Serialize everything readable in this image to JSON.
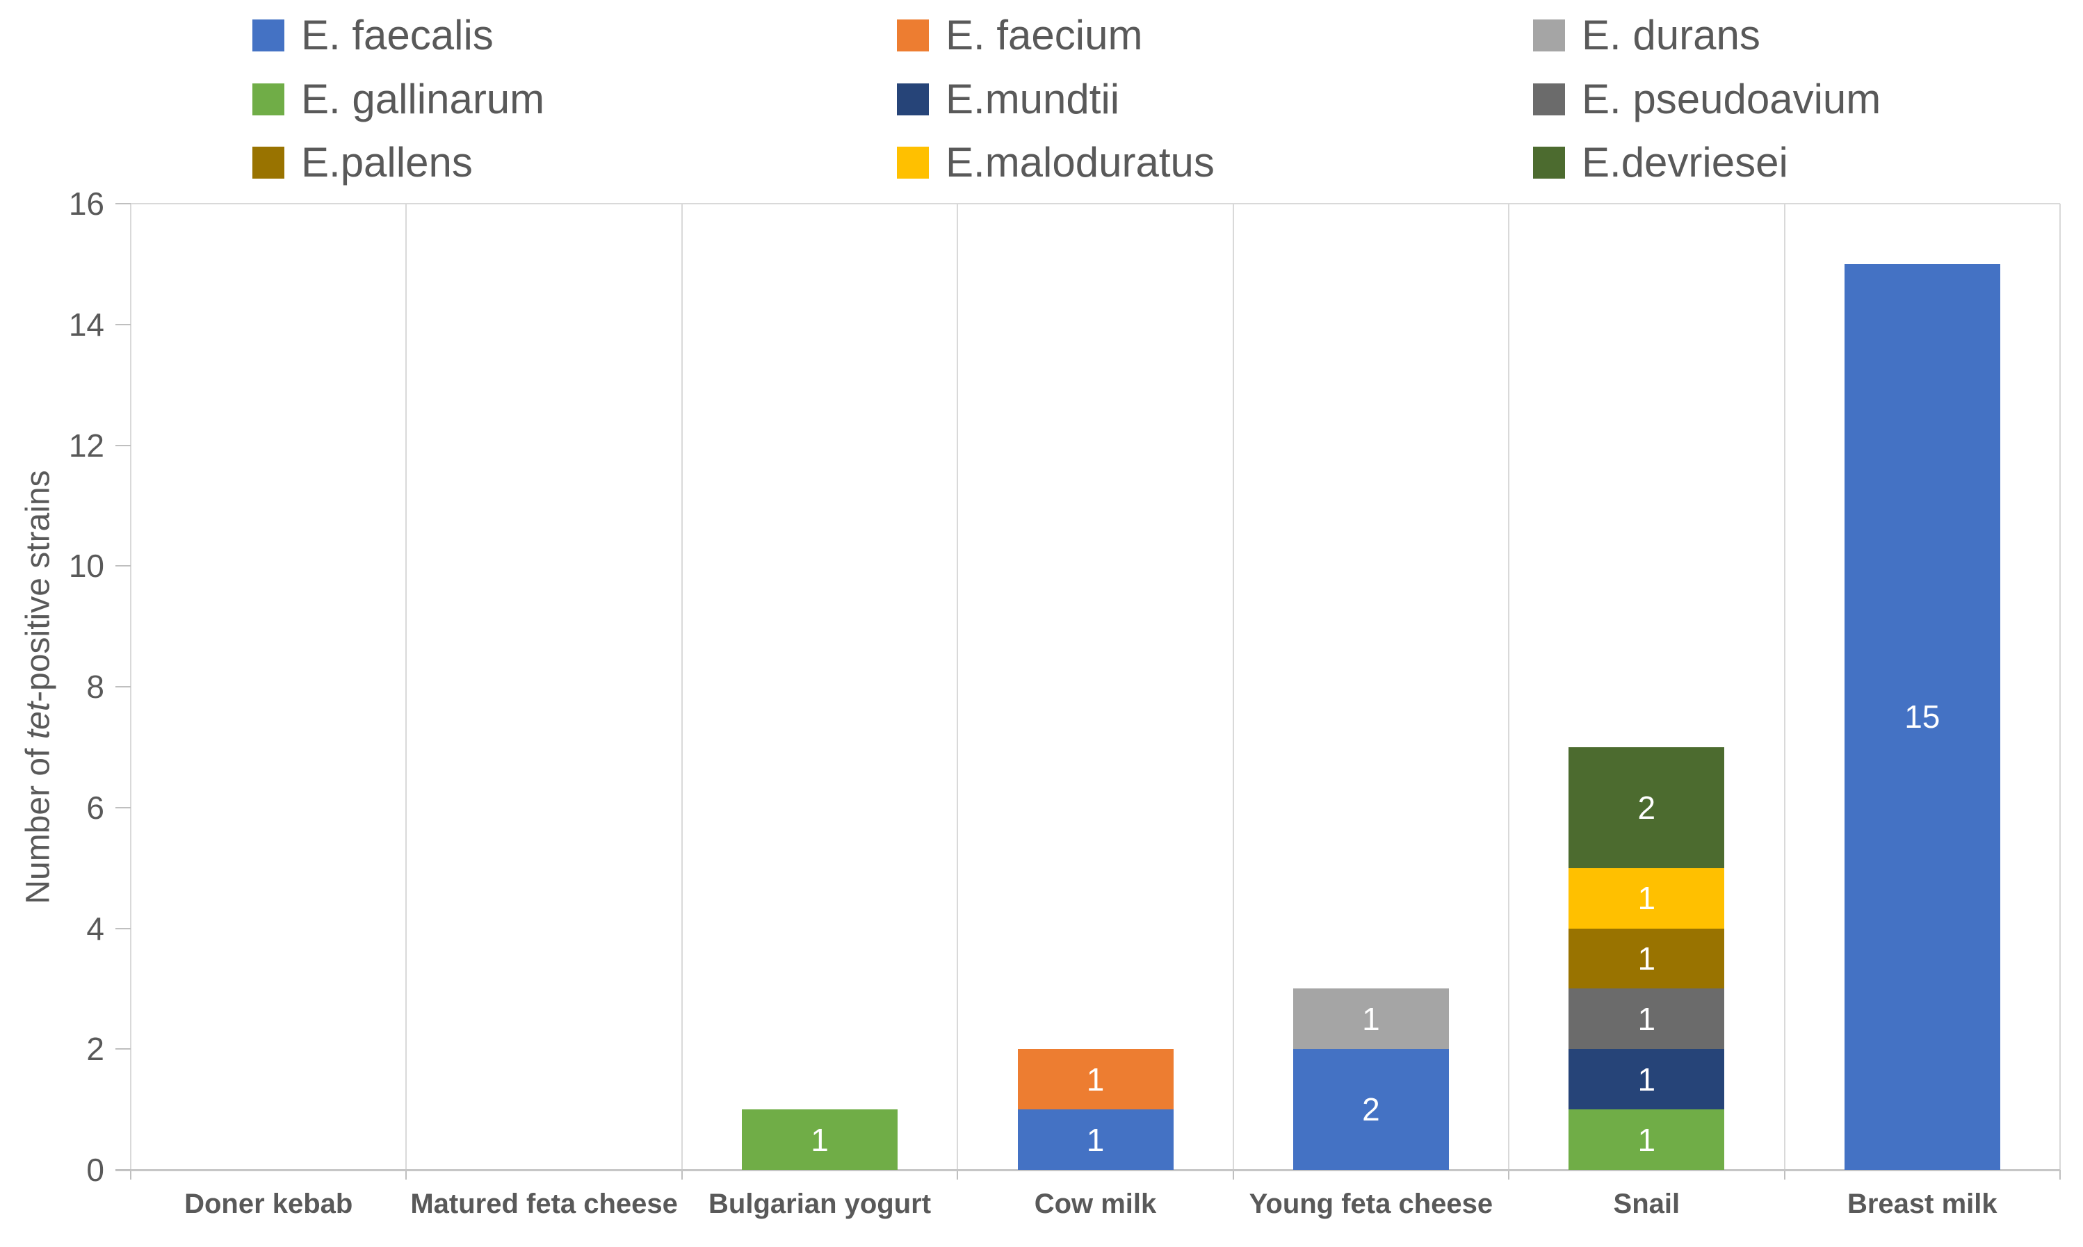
{
  "chart_data": {
    "type": "bar",
    "subtype": "stacked-vertical",
    "title": "",
    "categories": [
      "Doner kebab",
      "Matured feta cheese",
      "Bulgarian yogurt",
      "Cow milk",
      "Young feta cheese",
      "Snail",
      "Breast milk"
    ],
    "series": [
      {
        "name": "E. faecalis",
        "color": "#4472C4",
        "values": [
          0,
          0,
          0,
          1,
          2,
          0,
          15
        ]
      },
      {
        "name": "E. faecium",
        "color": "#ED7D31",
        "values": [
          0,
          0,
          0,
          1,
          0,
          0,
          0
        ]
      },
      {
        "name": "E. durans",
        "color": "#A5A5A5",
        "values": [
          0,
          0,
          0,
          0,
          1,
          0,
          0
        ]
      },
      {
        "name": "E. gallinarum",
        "color": "#70AD47",
        "values": [
          0,
          0,
          1,
          0,
          0,
          1,
          0
        ]
      },
      {
        "name": "E.mundtii",
        "color": "#264478",
        "values": [
          0,
          0,
          0,
          0,
          0,
          1,
          0
        ]
      },
      {
        "name": "E. pseudoavium",
        "color": "#6B6B6B",
        "values": [
          0,
          0,
          0,
          0,
          0,
          1,
          0
        ]
      },
      {
        "name": "E.pallens",
        "color": "#997300",
        "values": [
          0,
          0,
          0,
          0,
          0,
          1,
          0
        ]
      },
      {
        "name": "E.maloduratus",
        "color": "#FFC000",
        "values": [
          0,
          0,
          0,
          0,
          0,
          1,
          0
        ]
      },
      {
        "name": "E.devriesei",
        "color": "#4C6B2F",
        "values": [
          0,
          0,
          0,
          0,
          0,
          2,
          0
        ]
      }
    ],
    "stacking": "series stacked bottom-to-top in listed order",
    "data_labels": {
      "show": true,
      "color": "#FFFFFF",
      "position": "center of segment"
    },
    "ylabel_prefix": "Number of ",
    "ylabel_italic": "tet",
    "ylabel_suffix": "-positive strains",
    "xlabel": "",
    "ylim": [
      0,
      16
    ],
    "yticks": [
      0,
      2,
      4,
      6,
      8,
      10,
      12,
      14,
      16
    ],
    "grid": "vertical category separators, top border line, outward axis ticks",
    "legend": {
      "position": "top",
      "columns": 3,
      "rows": 3,
      "order": "row-major"
    }
  },
  "style": {
    "text_color": "#595959",
    "gridline_color": "#D9D9D9",
    "axis_line_color": "#BFBFBF",
    "background": "#FFFFFF"
  }
}
